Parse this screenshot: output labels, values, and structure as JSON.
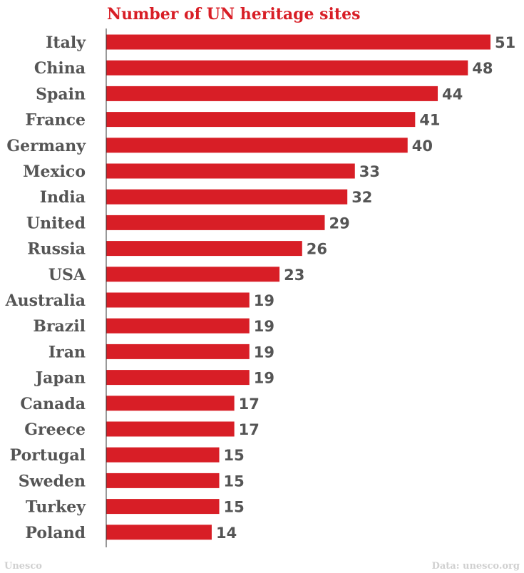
{
  "chart_data": {
    "type": "bar",
    "orientation": "horizontal",
    "title": "Number of UN heritage sites",
    "categories": [
      "Italy",
      "China",
      "Spain",
      "France",
      "Germany",
      "Mexico",
      "India",
      "United",
      "Russia",
      "USA",
      "Australia",
      "Brazil",
      "Iran",
      "Japan",
      "Canada",
      "Greece",
      "Portugal",
      "Sweden",
      "Turkey",
      "Poland"
    ],
    "values": [
      51,
      48,
      44,
      41,
      40,
      33,
      32,
      29,
      26,
      23,
      19,
      19,
      19,
      19,
      17,
      17,
      15,
      15,
      15,
      14
    ],
    "xlim": [
      0,
      51
    ],
    "grid": false,
    "legend": "none",
    "bar_color": "#d81e26",
    "label_color": "#555555"
  },
  "footer": {
    "source_left": "Unesco",
    "source_right": "Data: unesco.org"
  }
}
